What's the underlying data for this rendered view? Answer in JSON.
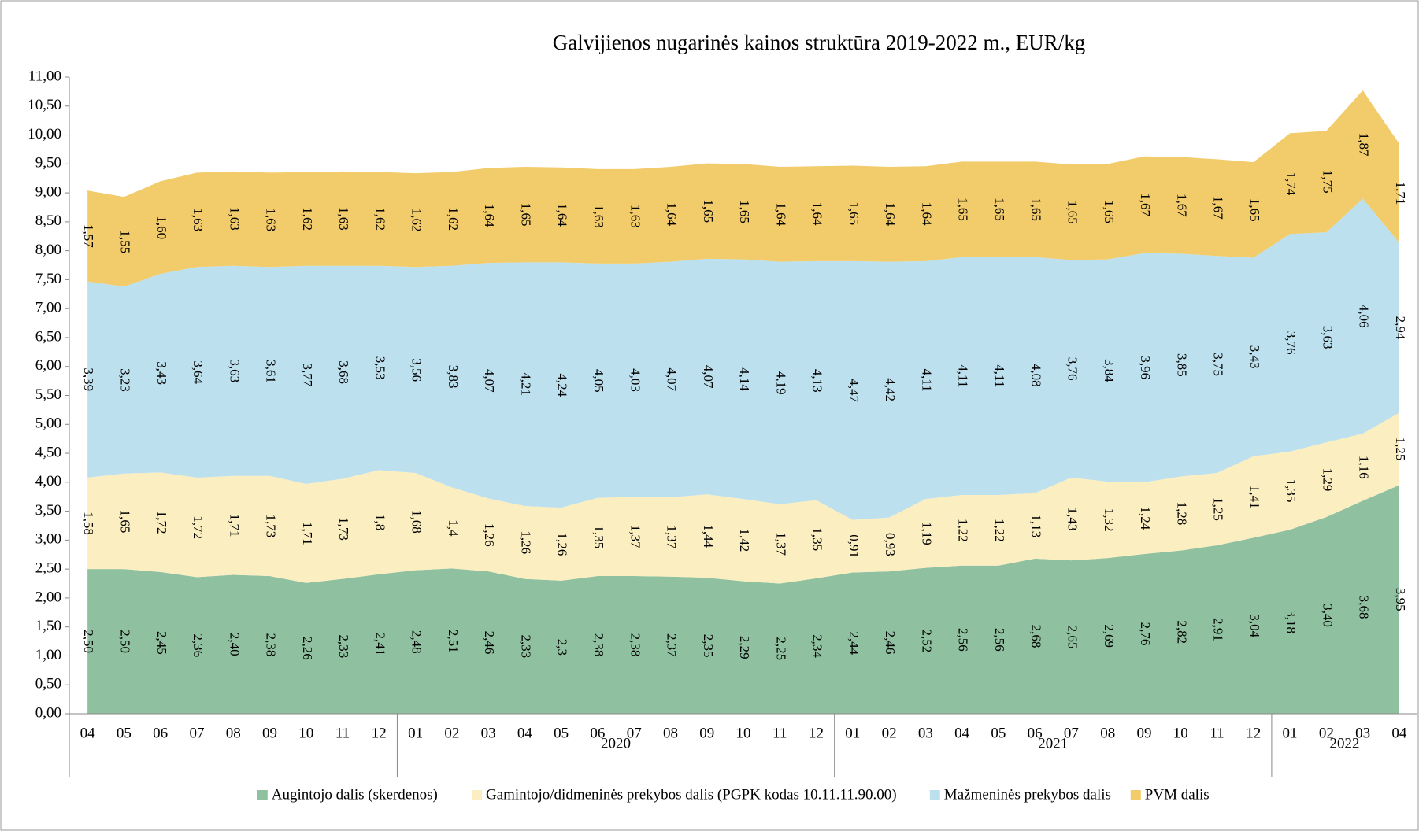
{
  "chart_data": {
    "type": "stacked_area",
    "title": "Galvijienos nugarinės kainos struktūra 2019-2022 m., EUR/kg",
    "categories": [
      "04",
      "05",
      "06",
      "07",
      "08",
      "09",
      "10",
      "11",
      "12",
      "01",
      "02",
      "03",
      "04",
      "05",
      "06",
      "07",
      "08",
      "09",
      "10",
      "11",
      "12",
      "01",
      "02",
      "03",
      "04",
      "05",
      "06",
      "07",
      "08",
      "09",
      "10",
      "11",
      "12",
      "01",
      "02",
      "03",
      "04"
    ],
    "category_groups": [
      {
        "label": null,
        "size": 9
      },
      {
        "label": "2020",
        "size": 12
      },
      {
        "label": "2021",
        "size": 12
      },
      {
        "label": "2022",
        "size": 4
      }
    ],
    "ylim": [
      0,
      11
    ],
    "yticks": [
      {
        "value": 0,
        "label": "0,00"
      },
      {
        "value": 0.5,
        "label": "0,50"
      },
      {
        "value": 1,
        "label": "1,00"
      },
      {
        "value": 1.5,
        "label": "1,50"
      },
      {
        "value": 2,
        "label": "2,00"
      },
      {
        "value": 2.5,
        "label": "2,50"
      },
      {
        "value": 3,
        "label": "3,00"
      },
      {
        "value": 3.5,
        "label": "3,50"
      },
      {
        "value": 4,
        "label": "4,00"
      },
      {
        "value": 4.5,
        "label": "4,50"
      },
      {
        "value": 5,
        "label": "5,00"
      },
      {
        "value": 5.5,
        "label": "5,50"
      },
      {
        "value": 6,
        "label": "6,00"
      },
      {
        "value": 6.5,
        "label": "6,50"
      },
      {
        "value": 7,
        "label": "7,00"
      },
      {
        "value": 7.5,
        "label": "7,50"
      },
      {
        "value": 8,
        "label": "8,00"
      },
      {
        "value": 8.5,
        "label": "8,50"
      },
      {
        "value": 9,
        "label": "9,00"
      },
      {
        "value": 9.5,
        "label": "9,50"
      },
      {
        "value": 10,
        "label": "10,00"
      },
      {
        "value": 10.5,
        "label": "10,50"
      },
      {
        "value": 11,
        "label": "11,00"
      }
    ],
    "legend": "bottom",
    "series": [
      {
        "name": "Augintojo dalis (skerdenos)",
        "color": "#8fc1a0",
        "values": [
          2.5,
          2.5,
          2.45,
          2.36,
          2.4,
          2.38,
          2.26,
          2.33,
          2.41,
          2.48,
          2.51,
          2.46,
          2.33,
          2.3,
          2.38,
          2.38,
          2.37,
          2.35,
          2.29,
          2.25,
          2.34,
          2.44,
          2.46,
          2.52,
          2.56,
          2.56,
          2.68,
          2.65,
          2.69,
          2.76,
          2.82,
          2.91,
          3.04,
          3.18,
          3.4,
          3.68,
          3.95
        ],
        "value_labels": [
          "2,50",
          "2,50",
          "2,45",
          "2,36",
          "2,40",
          "2,38",
          "2,26",
          "2,33",
          "2,41",
          "2,48",
          "2,51",
          "2,46",
          "2,33",
          "2,3",
          "2,38",
          "2,38",
          "2,37",
          "2,35",
          "2,29",
          "2,25",
          "2,34",
          "2,44",
          "2,46",
          "2,52",
          "2,56",
          "2,56",
          "2,68",
          "2,65",
          "2,69",
          "2,76",
          "2,82",
          "2,91",
          "3,04",
          "3,18",
          "3,40",
          "3,68",
          "3,95"
        ]
      },
      {
        "name": "Gamintojo/didmeninės prekybos dalis (PGPK kodas 10.11.11.90.00)",
        "color": "#fbeec0",
        "values": [
          1.58,
          1.65,
          1.72,
          1.72,
          1.71,
          1.73,
          1.71,
          1.73,
          1.8,
          1.68,
          1.4,
          1.26,
          1.26,
          1.26,
          1.35,
          1.37,
          1.37,
          1.44,
          1.42,
          1.37,
          1.35,
          0.91,
          0.93,
          1.19,
          1.22,
          1.22,
          1.13,
          1.43,
          1.32,
          1.24,
          1.28,
          1.25,
          1.41,
          1.35,
          1.29,
          1.16,
          1.25
        ],
        "value_labels": [
          "1,58",
          "1,65",
          "1,72",
          "1,72",
          "1,71",
          "1,73",
          "1,71",
          "1,73",
          "1,8",
          "1,68",
          "1,4",
          "1,26",
          "1,26",
          "1,26",
          "1,35",
          "1,37",
          "1,37",
          "1,44",
          "1,42",
          "1,37",
          "1,35",
          "0,91",
          "0,93",
          "1,19",
          "1,22",
          "1,22",
          "1,13",
          "1,43",
          "1,32",
          "1,24",
          "1,28",
          "1,25",
          "1,41",
          "1,35",
          "1,29",
          "1,16",
          "1,25"
        ]
      },
      {
        "name": "Mažmeninės prekybos dalis",
        "color": "#bde0ef",
        "values": [
          3.39,
          3.23,
          3.43,
          3.64,
          3.63,
          3.61,
          3.77,
          3.68,
          3.53,
          3.56,
          3.83,
          4.07,
          4.21,
          4.24,
          4.05,
          4.03,
          4.07,
          4.07,
          4.14,
          4.19,
          4.13,
          4.47,
          4.42,
          4.11,
          4.11,
          4.11,
          4.08,
          3.76,
          3.84,
          3.96,
          3.85,
          3.75,
          3.43,
          3.76,
          3.63,
          4.06,
          2.94
        ],
        "value_labels": [
          "3,39",
          "3,23",
          "3,43",
          "3,64",
          "3,63",
          "3,61",
          "3,77",
          "3,68",
          "3,53",
          "3,56",
          "3,83",
          "4,07",
          "4,21",
          "4,24",
          "4,05",
          "4,03",
          "4,07",
          "4,07",
          "4,14",
          "4,19",
          "4,13",
          "4,47",
          "4,42",
          "4,11",
          "4,11",
          "4,11",
          "4,08",
          "3,76",
          "3,84",
          "3,96",
          "3,85",
          "3,75",
          "3,43",
          "3,76",
          "3,63",
          "4,06",
          "2,94"
        ]
      },
      {
        "name": "PVM dalis",
        "color": "#f2cb6a",
        "values": [
          1.57,
          1.55,
          1.6,
          1.63,
          1.63,
          1.63,
          1.62,
          1.63,
          1.62,
          1.62,
          1.62,
          1.64,
          1.65,
          1.64,
          1.63,
          1.63,
          1.64,
          1.65,
          1.65,
          1.64,
          1.64,
          1.65,
          1.64,
          1.64,
          1.65,
          1.65,
          1.65,
          1.65,
          1.65,
          1.67,
          1.67,
          1.67,
          1.65,
          1.74,
          1.75,
          1.87,
          1.71
        ],
        "value_labels": [
          "1,57",
          "1,55",
          "1,60",
          "1,63",
          "1,63",
          "1,63",
          "1,62",
          "1,63",
          "1,62",
          "1,62",
          "1,62",
          "1,64",
          "1,65",
          "1,64",
          "1,63",
          "1,63",
          "1,64",
          "1,65",
          "1,65",
          "1,64",
          "1,64",
          "1,65",
          "1,64",
          "1,64",
          "1,65",
          "1,65",
          "1,65",
          "1,65",
          "1,65",
          "1,67",
          "1,67",
          "1,67",
          "1,65",
          "1,74",
          "1,75",
          "1,87",
          "1,71"
        ]
      }
    ]
  }
}
